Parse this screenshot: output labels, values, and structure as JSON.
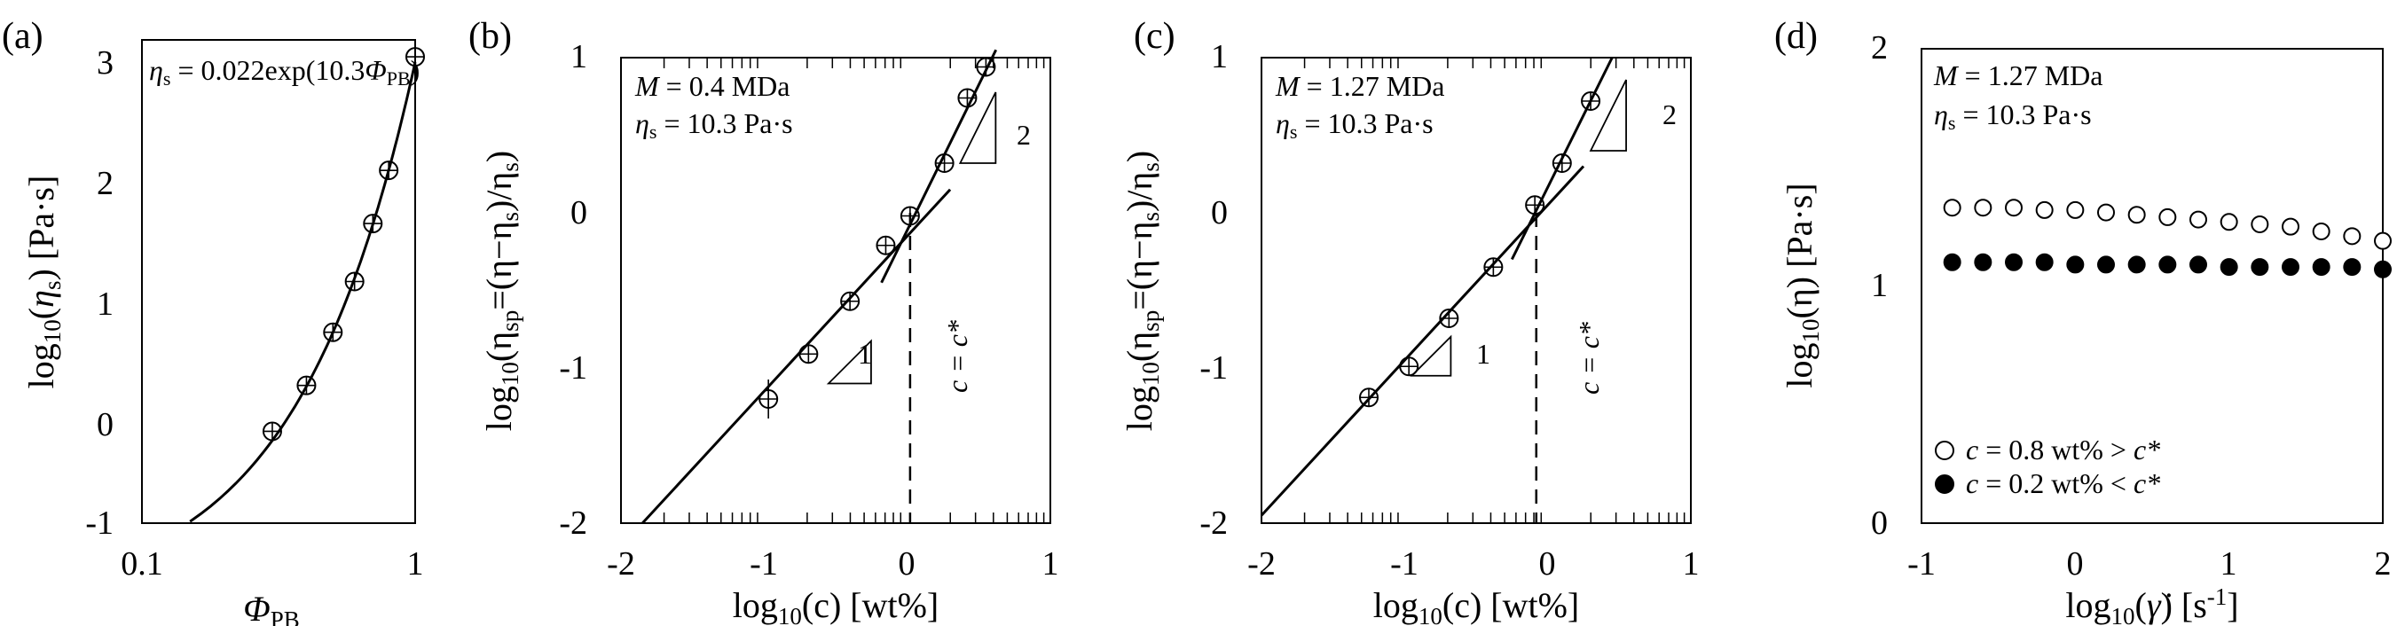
{
  "chart_data": [
    {
      "type": "line",
      "panel_label": "(a)",
      "xscale": "log",
      "xlim": [
        0.1,
        1
      ],
      "ylim": [
        -1,
        3
      ],
      "xticks": [
        "0.1",
        "1"
      ],
      "yticks": [
        "-1",
        "0",
        "1",
        "2",
        "3"
      ],
      "xlabel_main": "Φ",
      "xlabel_sub": "PB",
      "ylabel_pre": "log",
      "ylabel_sub": "10",
      "ylabel_arg_open": "(",
      "ylabel_arg": "η",
      "ylabel_arg_sub": "s",
      "ylabel_arg_close": ")",
      "ylabel_units": " [Pa·s]",
      "annotation": {
        "eta": "η",
        "eta_sub": "s",
        "expr": " = 0.022exp(10.3",
        "phi": "Φ",
        "phi_sub": "PB",
        "close": ")"
      },
      "series": [
        {
          "name": "data",
          "marker": "open-circle-cross",
          "x": [
            0.3,
            0.4,
            0.5,
            0.6,
            0.7,
            0.8,
            1.0
          ],
          "y": [
            -0.24,
            0.14,
            0.58,
            1.0,
            1.48,
            1.92,
            2.86
          ]
        },
        {
          "name": "fit",
          "style": "line",
          "x": [
            0.15,
            1.0
          ]
        }
      ]
    },
    {
      "type": "line",
      "panel_label": "(b)",
      "xlim": [
        -2,
        1
      ],
      "ylim": [
        -2,
        1
      ],
      "xticks": [
        "-2",
        "-1",
        "0",
        "1"
      ],
      "yticks": [
        "-2",
        "-1",
        "0",
        "1"
      ],
      "xlabel_pre": "log",
      "xlabel_sub": "10",
      "xlabel_rest": "(c) [wt%]",
      "ylabel_pre": "log",
      "ylabel_sub": "10",
      "ylabel_mid": "(η",
      "ylabel_sp": "sp",
      "ylabel_rest": "=(η−η",
      "ylabel_s1": "s",
      "ylabel_rest2": ")/η",
      "ylabel_s2": "s",
      "ylabel_close": ")",
      "ann_line1": {
        "sym": "M",
        "rest": " = 0.4 MDa"
      },
      "ann_line2": {
        "sym": "η",
        "sub": "s",
        "rest": " = 10.3 Pa·s"
      },
      "slope_low": "1",
      "slope_high": "2",
      "cstar_label": "c = c*",
      "cstar_x": 0.02,
      "series": [
        {
          "name": "data",
          "marker": "open-circle-cross",
          "x": [
            -0.97,
            -0.69,
            -0.4,
            -0.15,
            0.02,
            0.26,
            0.42,
            0.55
          ],
          "y": [
            -1.2,
            -0.91,
            -0.57,
            -0.21,
            -0.02,
            0.32,
            0.74,
            0.94
          ]
        },
        {
          "name": "fit-dilute",
          "style": "line",
          "x": [
            -1.85,
            0.3
          ],
          "y": [
            -2.0,
            0.15
          ]
        },
        {
          "name": "fit-semidilute",
          "style": "line",
          "x": [
            -0.18,
            0.62
          ],
          "y": [
            -0.45,
            1.05
          ]
        }
      ]
    },
    {
      "type": "line",
      "panel_label": "(c)",
      "xlim": [
        -2,
        1
      ],
      "ylim": [
        -2,
        1
      ],
      "xticks": [
        "-2",
        "-1",
        "0",
        "1"
      ],
      "yticks": [
        "-2",
        "-1",
        "0",
        "1"
      ],
      "xlabel_pre": "log",
      "xlabel_sub": "10",
      "xlabel_rest": "(c) [wt%]",
      "ylabel_pre": "log",
      "ylabel_sub": "10",
      "ylabel_mid": "(η",
      "ylabel_sp": "sp",
      "ylabel_rest": "=(η−η",
      "ylabel_s1": "s",
      "ylabel_rest2": ")/η",
      "ylabel_s2": "s",
      "ylabel_close": ")",
      "ann_line1": {
        "sym": "M",
        "rest": " = 1.27 MDa"
      },
      "ann_line2": {
        "sym": "η",
        "sub": "s",
        "rest": " = 10.3 Pa·s"
      },
      "slope_low": "1",
      "slope_high": "2",
      "cstar_label": "c = c*",
      "cstar_x": -0.08,
      "series": [
        {
          "name": "data",
          "marker": "open-circle-cross",
          "x": [
            -1.25,
            -0.97,
            -0.69,
            -0.38,
            -0.09,
            0.1,
            0.3
          ],
          "y": [
            -1.19,
            -0.99,
            -0.68,
            -0.35,
            0.05,
            0.32,
            0.72
          ]
        },
        {
          "name": "fit-dilute",
          "style": "line",
          "x": [
            -2.0,
            0.25
          ],
          "y": [
            -1.95,
            0.3
          ]
        },
        {
          "name": "fit-semidilute",
          "style": "line",
          "x": [
            -0.25,
            0.45
          ],
          "y": [
            -0.3,
            1.0
          ]
        }
      ]
    },
    {
      "type": "scatter",
      "panel_label": "(d)",
      "xlim": [
        -1,
        2
      ],
      "ylim": [
        0,
        2
      ],
      "xticks": [
        "-1",
        "0",
        "1",
        "2"
      ],
      "yticks": [
        "0",
        "1",
        "2"
      ],
      "xlabel_pre": "log",
      "xlabel_sub": "10",
      "xlabel_open": "(",
      "xlabel_sym": "γ̇",
      "xlabel_rest": ") [s",
      "xlabel_sup": "-1",
      "xlabel_close": "]",
      "ylabel_pre": "log",
      "ylabel_sub": "10",
      "ylabel_rest": "(η) [Pa·s]",
      "ann_line1": {
        "sym": "M",
        "rest": " = 1.27 MDa"
      },
      "ann_line2": {
        "sym": "η",
        "sub": "s",
        "rest": " = 10.3 Pa·s"
      },
      "legend": [
        {
          "marker": "open-circle",
          "sym": "c",
          "rest": " = 0.8 wt% > ",
          "sym2": "c*"
        },
        {
          "marker": "filled-circle",
          "sym": "c",
          "rest": " = 0.2 wt% < ",
          "sym2": "c*"
        }
      ],
      "series": [
        {
          "name": "c = 0.8 wt%",
          "marker": "open-circle",
          "x": [
            -0.8,
            -0.6,
            -0.4,
            -0.2,
            0.0,
            0.2,
            0.4,
            0.6,
            0.8,
            1.0,
            1.2,
            1.4,
            1.6,
            1.8,
            2.0
          ],
          "y": [
            1.33,
            1.33,
            1.33,
            1.32,
            1.32,
            1.31,
            1.3,
            1.29,
            1.28,
            1.27,
            1.26,
            1.25,
            1.23,
            1.21,
            1.19
          ]
        },
        {
          "name": "c = 0.2 wt%",
          "marker": "filled-circle",
          "x": [
            -0.8,
            -0.6,
            -0.4,
            -0.2,
            0.0,
            0.2,
            0.4,
            0.6,
            0.8,
            1.0,
            1.2,
            1.4,
            1.6,
            1.8,
            2.0
          ],
          "y": [
            1.1,
            1.1,
            1.1,
            1.1,
            1.09,
            1.09,
            1.09,
            1.09,
            1.09,
            1.08,
            1.08,
            1.08,
            1.08,
            1.08,
            1.07
          ]
        }
      ]
    }
  ]
}
